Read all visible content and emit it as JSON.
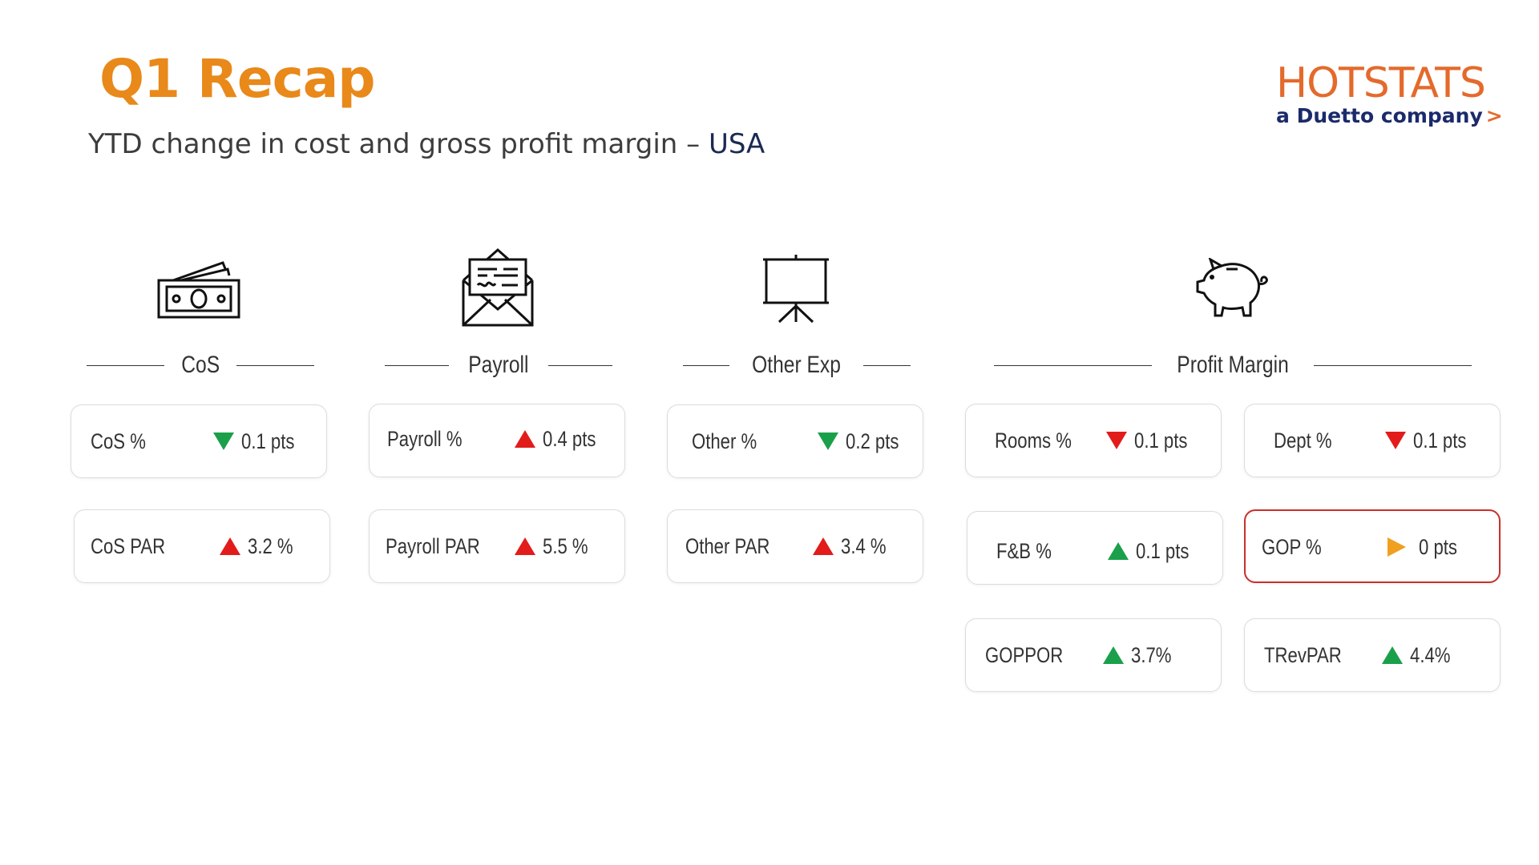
{
  "header": {
    "title": "Q1 Recap",
    "subtitle": "YTD change in cost and gross profit margin",
    "separator": "–",
    "region": "USA"
  },
  "logo": {
    "brand": "HOTSTATS",
    "tagline": "a Duetto company",
    "chevron": ">"
  },
  "colors": {
    "title": "#e8891a",
    "up": "#1aa04a",
    "down": "#e21b1b",
    "flat": "#f0a020",
    "highlight_border": "#c9302c"
  },
  "sections": {
    "cos": {
      "label": "CoS",
      "icon": "money-icon",
      "metrics": [
        {
          "name": "CoS %",
          "direction": "down",
          "arrow_color": "#1aa04a",
          "value": "0.1 pts"
        },
        {
          "name": "CoS PAR",
          "direction": "up",
          "arrow_color": "#e21b1b",
          "value": "3.2 %"
        }
      ]
    },
    "payroll": {
      "label": "Payroll",
      "icon": "envelope-payslip-icon",
      "metrics": [
        {
          "name": "Payroll %",
          "direction": "up",
          "arrow_color": "#e21b1b",
          "value": "0.4 pts"
        },
        {
          "name": "Payroll PAR",
          "direction": "up",
          "arrow_color": "#e21b1b",
          "value": "5.5 %"
        }
      ]
    },
    "other": {
      "label": "Other Exp",
      "icon": "presentation-board-icon",
      "metrics": [
        {
          "name": "Other %",
          "direction": "down",
          "arrow_color": "#1aa04a",
          "value": "0.2 pts"
        },
        {
          "name": "Other PAR",
          "direction": "up",
          "arrow_color": "#e21b1b",
          "value": "3.4 %"
        }
      ]
    },
    "profit": {
      "label": "Profit Margin",
      "icon": "piggy-bank-icon",
      "metrics": [
        {
          "name": "Rooms %",
          "direction": "down",
          "arrow_color": "#e21b1b",
          "value": "0.1 pts"
        },
        {
          "name": "Dept %",
          "direction": "down",
          "arrow_color": "#e21b1b",
          "value": "0.1 pts"
        },
        {
          "name": "F&B %",
          "direction": "up",
          "arrow_color": "#1aa04a",
          "value": "0.1 pts"
        },
        {
          "name": "GOP %",
          "direction": "flat",
          "arrow_color": "#f0a020",
          "value": "0 pts"
        },
        {
          "name": "GOPPOR",
          "direction": "up",
          "arrow_color": "#1aa04a",
          "value": "3.7%"
        },
        {
          "name": "TRevPAR",
          "direction": "up",
          "arrow_color": "#1aa04a",
          "value": "4.4%"
        }
      ]
    }
  }
}
